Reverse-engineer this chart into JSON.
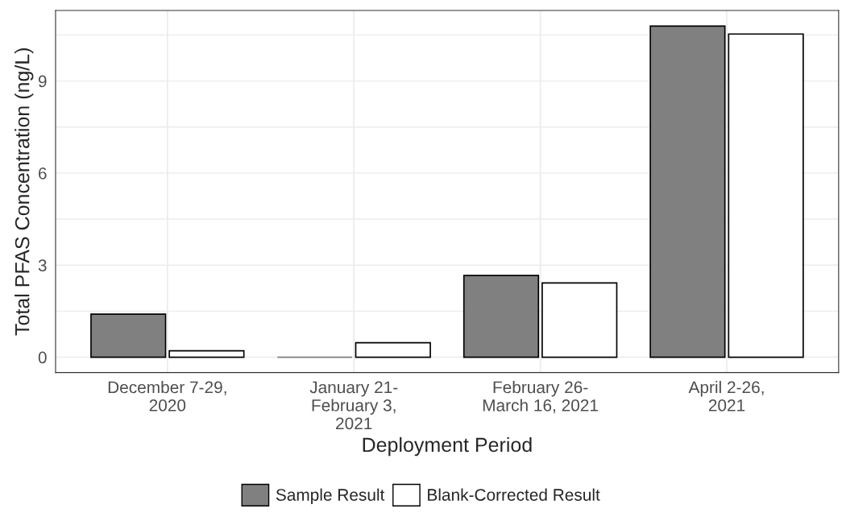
{
  "chart_data": {
    "type": "bar",
    "xlabel": "Deployment Period",
    "ylabel": "Total PFAS Concentration (ng/L)",
    "categories": [
      "December 7-29,\n2020",
      "January 21-\nFebruary 3,\n2021",
      "February 26-\nMarch 16, 2021",
      "April 2-26,\n2021"
    ],
    "series": [
      {
        "name": "Sample Result",
        "color": "#808080",
        "values": [
          1.4,
          0,
          2.66,
          10.79
        ]
      },
      {
        "name": "Blank-Corrected Result",
        "color": "#ffffff",
        "values": [
          0.21,
          0.47,
          2.42,
          10.53
        ]
      }
    ],
    "ylim": [
      -0.5,
      11.3
    ],
    "yticks": [
      0,
      3,
      6,
      9
    ],
    "grid": true,
    "legend": "bottom"
  }
}
